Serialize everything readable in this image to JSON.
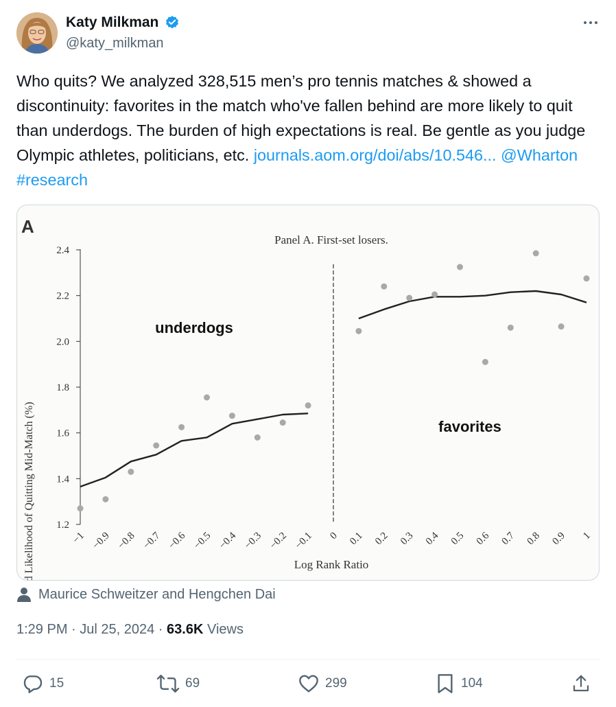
{
  "author": {
    "display_name": "Katy Milkman",
    "handle": "@katy_milkman",
    "verified": true
  },
  "tweet": {
    "text_parts": [
      {
        "type": "text",
        "value": "Who quits? We analyzed 328,515 men’s pro tennis matches & showed a discontinuity: favorites in the match who've fallen behind are more likely to quit than underdogs. The burden of high expectations is real. Be gentle as you judge Olympic athletes, politicians, etc. "
      },
      {
        "type": "link",
        "value": "journals.aom.org/doi/abs/10.546..."
      },
      {
        "type": "text",
        "value": " "
      },
      {
        "type": "link",
        "value": "@Wharton"
      },
      {
        "type": "text",
        "value": " "
      },
      {
        "type": "link",
        "value": "#research"
      }
    ]
  },
  "media_credit": "Maurice Schweitzer and Hengchen Dai",
  "meta": {
    "time": "1:29 PM",
    "date": "Jul 25, 2024",
    "views_count": "63.6K",
    "views_label": "Views"
  },
  "actions": {
    "replies": "15",
    "reposts": "69",
    "likes": "299",
    "bookmarks": "104"
  },
  "icons": {
    "verified": "verified-badge-icon",
    "more": "more-dots-icon",
    "reply": "reply-icon",
    "repost": "repost-icon",
    "like": "heart-icon",
    "bookmark": "bookmark-icon",
    "share": "share-icon",
    "person": "person-icon"
  },
  "colors": {
    "link": "#1d9bf0",
    "secondary": "#536471",
    "verified": "#1d9bf0"
  },
  "chart_data": {
    "type": "scatter",
    "panel_letter": "A",
    "title": "Panel A. First-set losers.",
    "xlabel": "Log Rank Ratio",
    "ylabel": "Observed Likelihood of Quitting Mid-Match (%)",
    "xlim": [
      -1,
      1
    ],
    "ylim": [
      1.2,
      2.4
    ],
    "x_ticks": [
      -1,
      -0.9,
      -0.8,
      -0.7,
      -0.6,
      -0.5,
      -0.4,
      -0.3,
      -0.2,
      -0.1,
      0,
      0.1,
      0.2,
      0.3,
      0.4,
      0.5,
      0.6,
      0.7,
      0.8,
      0.9,
      1
    ],
    "x_tick_labels": [
      "−1",
      "−0.9",
      "−0.8",
      "−0.7",
      "−0.6",
      "−0.5",
      "−0.4",
      "−0.3",
      "−0.2",
      "−0.1",
      "0",
      "0.1",
      "0.2",
      "0.3",
      "0.4",
      "0.5",
      "0.6",
      "0.7",
      "0.8",
      "0.9",
      "1"
    ],
    "y_ticks": [
      1.2,
      1.4,
      1.6,
      1.8,
      2.0,
      2.2,
      2.4
    ],
    "y_tick_labels": [
      "1.2",
      "1.4",
      "1.6",
      "1.8",
      "2.0",
      "2.2",
      "2.4"
    ],
    "annotations": [
      "underdogs",
      "favorites"
    ],
    "discontinuity_at": 0,
    "points_left": [
      [
        -1.0,
        1.27
      ],
      [
        -0.9,
        1.31
      ],
      [
        -0.8,
        1.43
      ],
      [
        -0.7,
        1.545
      ],
      [
        -0.6,
        1.625
      ],
      [
        -0.5,
        1.755
      ],
      [
        -0.4,
        1.675
      ],
      [
        -0.3,
        1.58
      ],
      [
        -0.2,
        1.645
      ],
      [
        -0.1,
        1.72
      ]
    ],
    "points_right": [
      [
        0.1,
        2.045
      ],
      [
        0.2,
        2.24
      ],
      [
        0.3,
        2.19
      ],
      [
        0.4,
        2.205
      ],
      [
        0.5,
        2.325
      ],
      [
        0.6,
        1.91
      ],
      [
        0.7,
        2.06
      ],
      [
        0.8,
        2.385
      ],
      [
        0.9,
        2.065
      ],
      [
        1.0,
        2.275
      ]
    ],
    "fit_left": [
      [
        -1.0,
        1.365
      ],
      [
        -0.9,
        1.405
      ],
      [
        -0.8,
        1.475
      ],
      [
        -0.7,
        1.505
      ],
      [
        -0.6,
        1.565
      ],
      [
        -0.5,
        1.58
      ],
      [
        -0.4,
        1.64
      ],
      [
        -0.3,
        1.66
      ],
      [
        -0.2,
        1.68
      ],
      [
        -0.1,
        1.685
      ]
    ],
    "fit_right": [
      [
        0.1,
        2.1
      ],
      [
        0.2,
        2.14
      ],
      [
        0.3,
        2.175
      ],
      [
        0.4,
        2.195
      ],
      [
        0.5,
        2.195
      ],
      [
        0.6,
        2.2
      ],
      [
        0.7,
        2.215
      ],
      [
        0.8,
        2.22
      ],
      [
        0.9,
        2.205
      ],
      [
        1.0,
        2.17
      ]
    ]
  }
}
